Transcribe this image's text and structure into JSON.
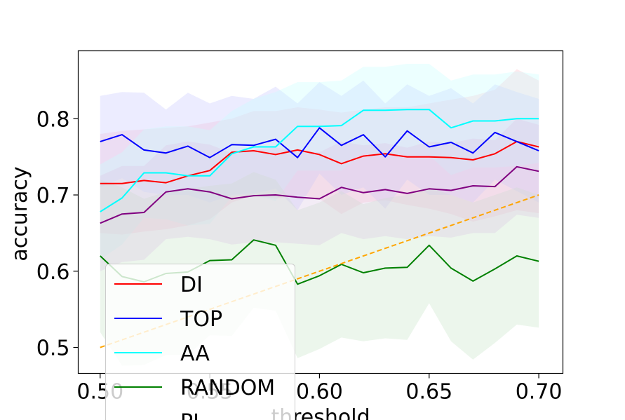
{
  "chart_data": {
    "type": "line",
    "xlabel": "threshold",
    "ylabel": "accuracy",
    "xlim": [
      0.49,
      0.711
    ],
    "ylim": [
      0.466,
      0.889
    ],
    "x_ticks": [
      "0.50",
      "0.55",
      "0.60",
      "0.65",
      "0.70"
    ],
    "y_ticks": [
      "0.5",
      "0.6",
      "0.7",
      "0.8"
    ],
    "grid": false,
    "legend_position": "lower-left",
    "x": [
      0.5,
      0.51,
      0.52,
      0.53,
      0.54,
      0.55,
      0.56,
      0.57,
      0.58,
      0.59,
      0.6,
      0.61,
      0.62,
      0.63,
      0.64,
      0.65,
      0.66,
      0.67,
      0.68,
      0.69,
      0.7
    ],
    "series": [
      {
        "name": "DI",
        "color": "#ff0000",
        "shade": "#ffc0cb",
        "values": [
          0.715,
          0.715,
          0.719,
          0.716,
          0.725,
          0.732,
          0.756,
          0.758,
          0.753,
          0.759,
          0.753,
          0.741,
          0.751,
          0.754,
          0.75,
          0.75,
          0.749,
          0.746,
          0.754,
          0.77,
          0.763
        ],
        "upper": [
          0.78,
          0.784,
          0.786,
          0.788,
          0.79,
          0.795,
          0.8,
          0.81,
          0.81,
          0.815,
          0.812,
          0.808,
          0.812,
          0.815,
          0.815,
          0.82,
          0.825,
          0.83,
          0.838,
          0.865,
          0.85
        ],
        "lower": [
          0.65,
          0.648,
          0.652,
          0.655,
          0.66,
          0.668,
          0.69,
          0.7,
          0.695,
          0.7,
          0.695,
          0.675,
          0.69,
          0.693,
          0.687,
          0.682,
          0.675,
          0.665,
          0.672,
          0.68,
          0.676
        ]
      },
      {
        "name": "TOP",
        "color": "#0000ff",
        "shade": "#c8c8ff",
        "values": [
          0.77,
          0.779,
          0.759,
          0.755,
          0.764,
          0.749,
          0.766,
          0.765,
          0.773,
          0.749,
          0.788,
          0.765,
          0.779,
          0.75,
          0.784,
          0.763,
          0.769,
          0.755,
          0.782,
          0.77,
          0.758
        ],
        "upper": [
          0.83,
          0.835,
          0.834,
          0.812,
          0.834,
          0.82,
          0.83,
          0.826,
          0.842,
          0.82,
          0.848,
          0.83,
          0.85,
          0.82,
          0.845,
          0.83,
          0.84,
          0.82,
          0.845,
          0.835,
          0.826
        ],
        "lower": [
          0.71,
          0.722,
          0.704,
          0.7,
          0.7,
          0.69,
          0.7,
          0.702,
          0.708,
          0.68,
          0.728,
          0.7,
          0.71,
          0.682,
          0.72,
          0.7,
          0.7,
          0.69,
          0.72,
          0.705,
          0.69
        ]
      },
      {
        "name": "AA",
        "color": "#00ffff",
        "shade": "#c8ffff",
        "values": [
          0.678,
          0.696,
          0.729,
          0.729,
          0.725,
          0.725,
          0.754,
          0.763,
          0.763,
          0.79,
          0.79,
          0.791,
          0.811,
          0.811,
          0.812,
          0.812,
          0.788,
          0.797,
          0.797,
          0.8,
          0.8
        ],
        "upper": [
          0.74,
          0.756,
          0.786,
          0.79,
          0.79,
          0.785,
          0.81,
          0.826,
          0.835,
          0.848,
          0.848,
          0.85,
          0.868,
          0.868,
          0.872,
          0.872,
          0.85,
          0.858,
          0.858,
          0.862,
          0.858
        ],
        "lower": [
          0.615,
          0.635,
          0.67,
          0.668,
          0.66,
          0.662,
          0.698,
          0.7,
          0.692,
          0.732,
          0.732,
          0.732,
          0.754,
          0.754,
          0.752,
          0.752,
          0.726,
          0.736,
          0.736,
          0.738,
          0.742
        ]
      },
      {
        "name": "RANDOM",
        "color": "#008000",
        "shade": "#c8e6c8",
        "values": [
          0.62,
          0.593,
          0.586,
          0.597,
          0.599,
          0.614,
          0.615,
          0.641,
          0.634,
          0.583,
          0.594,
          0.609,
          0.598,
          0.604,
          0.605,
          0.634,
          0.604,
          0.587,
          0.603,
          0.62,
          0.613
        ],
        "upper": [
          0.72,
          0.71,
          0.695,
          0.704,
          0.708,
          0.712,
          0.715,
          0.73,
          0.72,
          0.68,
          0.69,
          0.705,
          0.688,
          0.696,
          0.7,
          0.71,
          0.7,
          0.69,
          0.7,
          0.71,
          0.7
        ],
        "lower": [
          0.52,
          0.476,
          0.477,
          0.49,
          0.49,
          0.516,
          0.515,
          0.552,
          0.548,
          0.486,
          0.498,
          0.513,
          0.508,
          0.512,
          0.51,
          0.558,
          0.508,
          0.484,
          0.506,
          0.53,
          0.526
        ]
      },
      {
        "name": "PL",
        "color": "#800080",
        "shade": "#dcc8e6",
        "values": [
          0.663,
          0.675,
          0.677,
          0.704,
          0.708,
          0.704,
          0.695,
          0.699,
          0.7,
          0.697,
          0.695,
          0.71,
          0.703,
          0.707,
          0.702,
          0.708,
          0.706,
          0.712,
          0.711,
          0.737,
          0.731
        ],
        "upper": [
          0.725,
          0.738,
          0.738,
          0.765,
          0.77,
          0.766,
          0.755,
          0.76,
          0.762,
          0.758,
          0.756,
          0.77,
          0.765,
          0.768,
          0.762,
          0.77,
          0.768,
          0.774,
          0.772,
          0.8,
          0.792
        ],
        "lower": [
          0.6,
          0.612,
          0.615,
          0.642,
          0.645,
          0.642,
          0.635,
          0.638,
          0.638,
          0.636,
          0.634,
          0.65,
          0.642,
          0.646,
          0.642,
          0.646,
          0.644,
          0.65,
          0.65,
          0.674,
          0.67
        ]
      }
    ],
    "reference_line": {
      "from": [
        0.5,
        0.5
      ],
      "to": [
        0.7,
        0.7
      ],
      "color": "#ffa500",
      "style": "dashed"
    }
  }
}
